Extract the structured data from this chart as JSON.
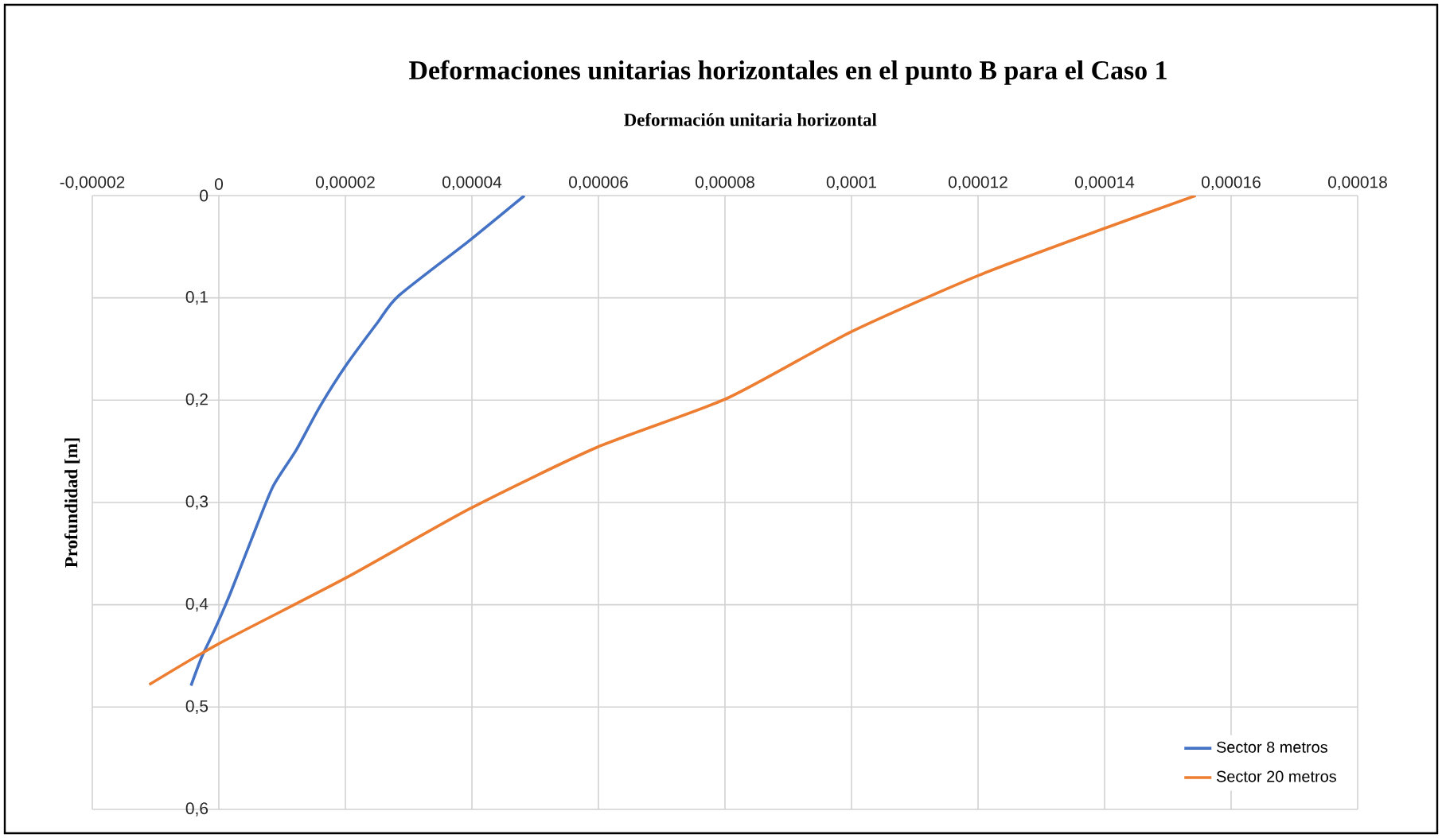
{
  "chart_data": {
    "type": "line",
    "title": "Deformaciones unitarias horizontales en el punto B para el Caso 1",
    "xlabel": "Deformación unitaria horizontal",
    "ylabel": "Profundidad [m]",
    "series": [
      {
        "name": "Sector 8 metros",
        "color": "#4472c4",
        "x": [
          4.83e-05,
          3.96e-05,
          2.84e-05,
          2.51e-05,
          2.01e-05,
          1.59e-05,
          1.22e-05,
          8.5e-06,
          5.1e-06,
          1.8e-06,
          -7e-07,
          -2.7e-06,
          -4.4e-06
        ],
        "values": [
          0,
          0.044,
          0.098,
          0.124,
          0.166,
          0.207,
          0.249,
          0.285,
          0.337,
          0.389,
          0.425,
          0.451,
          0.479
        ]
      },
      {
        "name": "Sector 20 metros",
        "color": "#ed7d31",
        "x": [
          0.0001544,
          0.0001391,
          0.0001201,
          0.0001,
          8.04e-05,
          5.98e-05,
          3.97e-05,
          2e-05,
          0,
          -1.1e-05
        ],
        "values": [
          0,
          0.034,
          0.078,
          0.133,
          0.198,
          0.246,
          0.306,
          0.374,
          0.438,
          0.478
        ]
      }
    ],
    "xlim": [
      -2e-05,
      0.00018
    ],
    "xticks": [
      {
        "value": -2e-05,
        "label": "-0,00002"
      },
      0,
      {
        "value": 2e-05,
        "label": "0,00002"
      },
      {
        "value": 4e-05,
        "label": "0,00004"
      },
      {
        "value": 6e-05,
        "label": "0,00006"
      },
      {
        "value": 8e-05,
        "label": "0,00008"
      },
      {
        "value": 0.0001,
        "label": "0,0001"
      },
      {
        "value": 0.00012,
        "label": "0,00012"
      },
      {
        "value": 0.00014,
        "label": "0,00014"
      },
      {
        "value": 0.00016,
        "label": "0,00016"
      },
      {
        "value": 0.00018,
        "label": "0,00018"
      }
    ],
    "ylim": [
      0.6,
      0
    ],
    "yticks": [
      0,
      {
        "value": 0.1,
        "label": "0,1"
      },
      {
        "value": 0.2,
        "label": "0,2"
      },
      {
        "value": 0.3,
        "label": "0,3"
      },
      {
        "value": 0.4,
        "label": "0,4"
      },
      {
        "value": 0.5,
        "label": "0,5"
      },
      {
        "value": 0.6,
        "label": "0,6"
      }
    ],
    "grid": true,
    "legend": "bottom right",
    "marker": "none",
    "line_style": "solid"
  }
}
